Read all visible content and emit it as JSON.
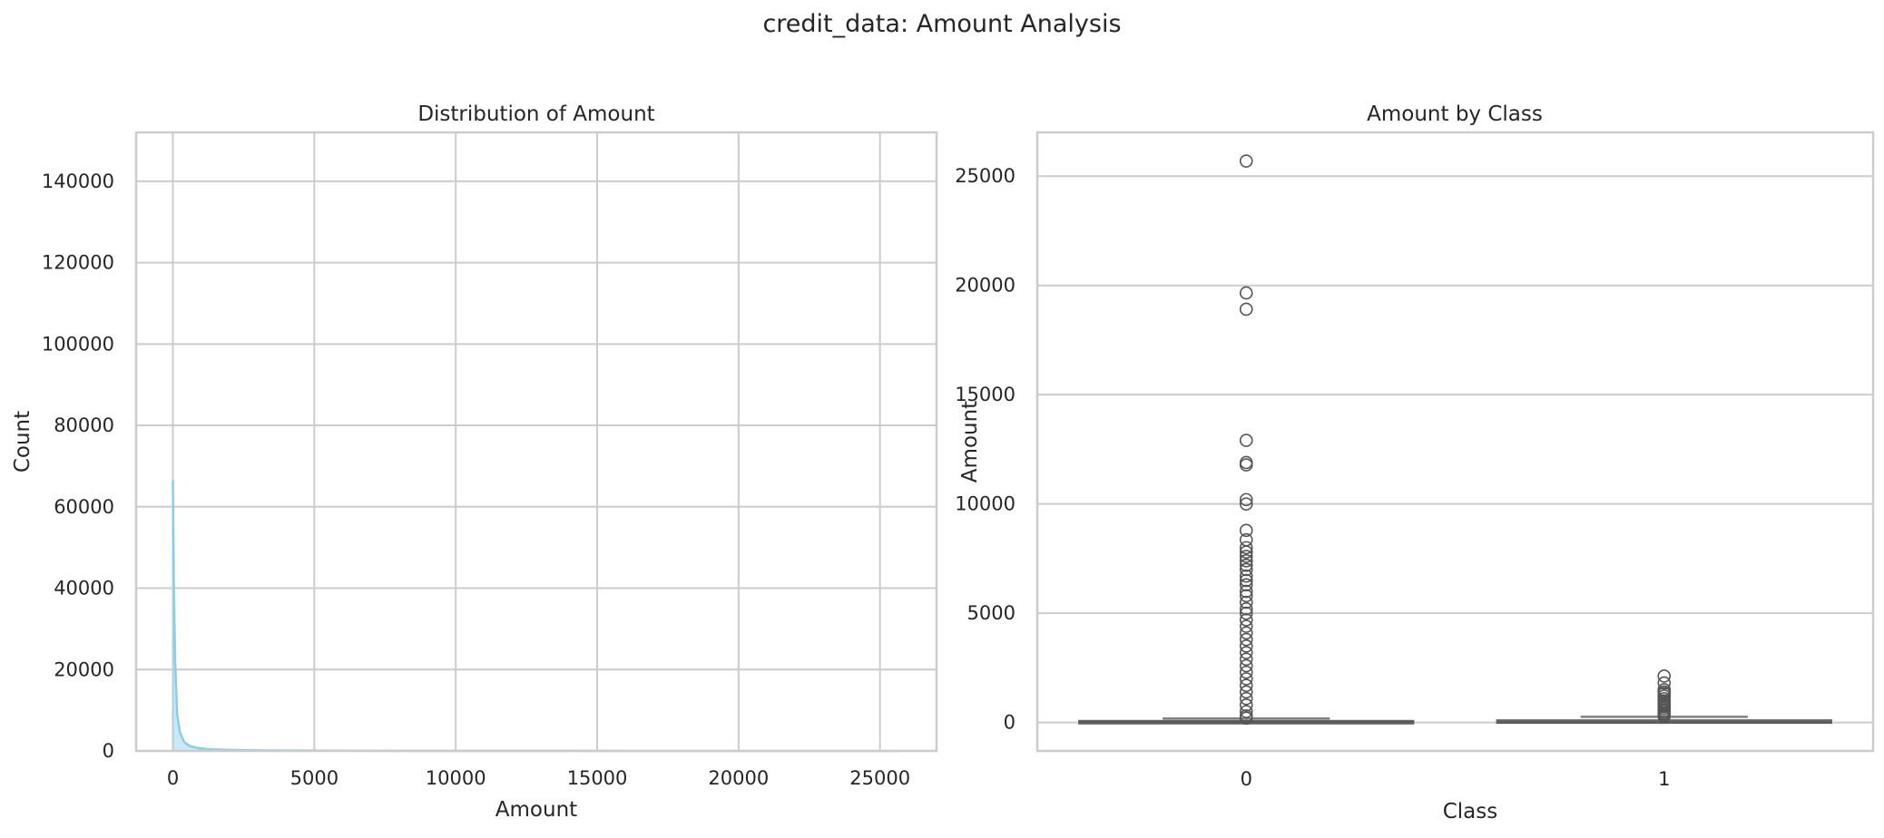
{
  "figure": {
    "suptitle": "credit_data: Amount Analysis"
  },
  "chart_data": [
    {
      "type": "area",
      "title": "Distribution of Amount",
      "xlabel": "Amount",
      "ylabel": "Count",
      "xlim": [
        -1300,
        27000
      ],
      "ylim": [
        0,
        152000
      ],
      "xticks": [
        0,
        5000,
        10000,
        15000,
        20000,
        25000
      ],
      "yticks": [
        0,
        20000,
        40000,
        60000,
        80000,
        100000,
        120000,
        140000
      ],
      "grid": true,
      "color": "#87CEEB",
      "series": [
        {
          "x": [
            0,
            30,
            80,
            150,
            250,
            400,
            600,
            900,
            1300,
            2000,
            3000,
            5000,
            8000,
            12000,
            16000,
            20000,
            24000,
            25700
          ],
          "values": [
            66500,
            42000,
            22000,
            9000,
            4500,
            2200,
            1200,
            700,
            400,
            250,
            150,
            80,
            40,
            20,
            10,
            5,
            3,
            2
          ]
        }
      ]
    },
    {
      "type": "box",
      "title": "Amount by Class",
      "xlabel": "Class",
      "ylabel": "Amount",
      "categories": [
        "0",
        "1"
      ],
      "ylim": [
        -1300,
        27000
      ],
      "yticks": [
        0,
        5000,
        10000,
        15000,
        20000,
        25000
      ],
      "grid": true,
      "color": "#808080",
      "boxes": [
        {
          "category": "0",
          "q1": 5.6,
          "median": 22,
          "q3": 77,
          "whisker_low": 0,
          "whisker_high": 185,
          "outliers": [
            25691,
            19656,
            18910,
            12910,
            11898,
            11789,
            10199,
            10000,
            8790,
            8360,
            8000,
            7800,
            7600,
            7400,
            7200,
            7000,
            6700,
            6500,
            6300,
            6000,
            5800,
            5500,
            5200,
            5000,
            4700,
            4400,
            4100,
            3800,
            3500,
            3200,
            2900,
            2600,
            2300,
            2000,
            1700,
            1400,
            1100,
            800,
            500,
            300,
            200
          ]
        },
        {
          "category": "1",
          "q1": 1,
          "median": 9,
          "q3": 105,
          "whisker_low": 0,
          "whisker_high": 262,
          "outliers": [
            2126,
            1810,
            1504,
            1402,
            1335,
            1218,
            1096,
            996,
            925,
            829,
            766,
            720,
            634,
            540,
            450,
            380,
            320,
            280
          ]
        }
      ]
    }
  ]
}
